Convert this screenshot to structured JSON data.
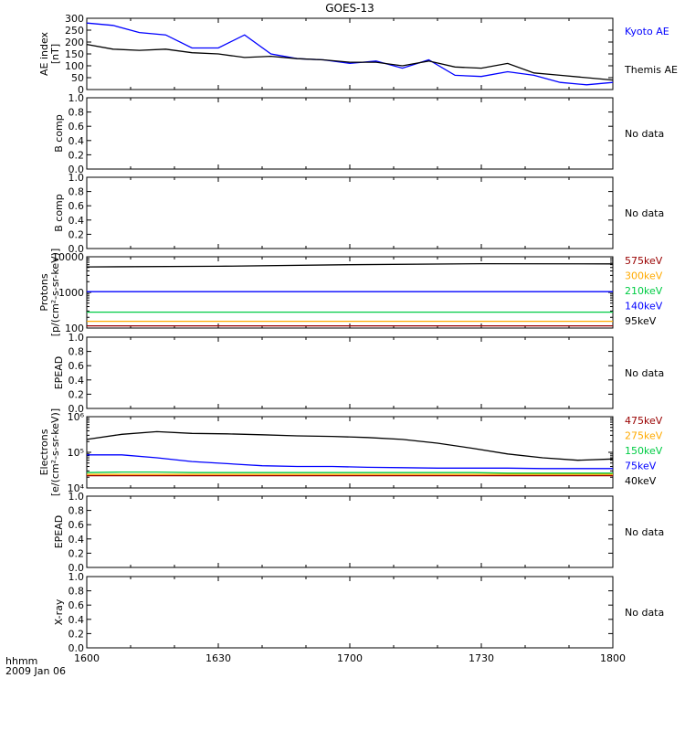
{
  "title": "GOES-13",
  "time_label": "hhmm",
  "date_label": "2009 Jan 06",
  "x_ticks": [
    "1600",
    "1630",
    "1700",
    "1730",
    "1800"
  ],
  "no_data_text": "No data",
  "chart_data": [
    {
      "type": "line",
      "ylabel": [
        "AE index",
        "[nT]"
      ],
      "ylim": [
        0,
        300
      ],
      "yticks": [
        "0",
        "50",
        "100",
        "150",
        "200",
        "250",
        "300"
      ],
      "x_unit": "minutes after 16:00 UT",
      "x": [
        0,
        6,
        12,
        18,
        24,
        30,
        36,
        42,
        48,
        54,
        60,
        66,
        72,
        78,
        84,
        90,
        96,
        102,
        108,
        114,
        120
      ],
      "legend_placement": "right",
      "series": [
        {
          "name": "Kyoto AE",
          "color": "#0000ff",
          "values": [
            280,
            270,
            240,
            230,
            175,
            175,
            230,
            150,
            130,
            125,
            110,
            120,
            90,
            125,
            60,
            55,
            75,
            60,
            30,
            20,
            30
          ]
        },
        {
          "name": "Themis AE",
          "color": "#000000",
          "values": [
            190,
            170,
            165,
            170,
            155,
            150,
            135,
            140,
            130,
            125,
            115,
            115,
            100,
            120,
            95,
            90,
            110,
            70,
            60,
            50,
            40
          ]
        }
      ]
    },
    {
      "type": "line",
      "ylabel": [
        "B comp"
      ],
      "ylim": [
        0,
        1
      ],
      "yticks": [
        "0.0",
        "0.2",
        "0.4",
        "0.6",
        "0.8",
        "1.0"
      ],
      "no_data": true
    },
    {
      "type": "line",
      "ylabel": [
        "B comp"
      ],
      "ylim": [
        0,
        1
      ],
      "yticks": [
        "0.0",
        "0.2",
        "0.4",
        "0.6",
        "0.8",
        "1.0"
      ],
      "no_data": true
    },
    {
      "type": "line",
      "ylabel": [
        "Protons",
        "[p/(cm²-s-sr-keV)]"
      ],
      "log_scale": true,
      "ylim": [
        100,
        10000
      ],
      "yticks": [
        "100",
        "1000",
        "10000"
      ],
      "legend_placement": "right",
      "series": [
        {
          "name": "575keV",
          "color": "#990000",
          "values": [
            115,
            115,
            115,
            115,
            115
          ]
        },
        {
          "name": "300keV",
          "color": "#ffaa00",
          "values": [
            155,
            155,
            155,
            155,
            155
          ]
        },
        {
          "name": "210keV",
          "color": "#00cc44",
          "values": [
            280,
            280,
            280,
            280,
            280
          ]
        },
        {
          "name": "140keV",
          "color": "#0000ff",
          "values": [
            1050,
            1050,
            1050,
            1050,
            1050
          ]
        },
        {
          "name": "95keV",
          "color": "#000000",
          "values": [
            5200,
            5400,
            6000,
            6400,
            6300
          ]
        }
      ]
    },
    {
      "type": "line",
      "ylabel": [
        "EPEAD"
      ],
      "ylim": [
        0,
        1
      ],
      "yticks": [
        "0.0",
        "0.2",
        "0.4",
        "0.6",
        "0.8",
        "1.0"
      ],
      "no_data": true
    },
    {
      "type": "line",
      "ylabel": [
        "Electrons",
        "[e/(cm²-s-sr-keV)]"
      ],
      "log_scale": true,
      "ylim": [
        10000,
        1000000
      ],
      "yticks": [
        "10⁴",
        "10⁵",
        "10⁶"
      ],
      "legend_placement": "right",
      "x_unit": "minutes after 16:00 UT",
      "x": [
        0,
        8,
        16,
        24,
        32,
        40,
        48,
        56,
        64,
        72,
        80,
        88,
        96,
        104,
        112,
        120
      ],
      "series": [
        {
          "name": "475keV",
          "color": "#990000",
          "values": [
            22000,
            22000,
            22000,
            22000,
            22000,
            22000,
            22000,
            22000,
            22000,
            22000,
            22000,
            22000,
            22000,
            22000,
            22000,
            22000
          ]
        },
        {
          "name": "275keV",
          "color": "#ffaa00",
          "values": [
            24000,
            24000,
            24000,
            24000,
            24000,
            24000,
            24000,
            24000,
            24000,
            24000,
            24000,
            24000,
            24000,
            24000,
            24000,
            24000
          ]
        },
        {
          "name": "150keV",
          "color": "#00cc44",
          "values": [
            27000,
            28000,
            28000,
            27000,
            27000,
            27000,
            27000,
            27000,
            27000,
            27000,
            27000,
            27000,
            26000,
            26000,
            26000,
            26000
          ]
        },
        {
          "name": "75keV",
          "color": "#0000ff",
          "values": [
            85000,
            85000,
            70000,
            55000,
            48000,
            42000,
            40000,
            40000,
            38000,
            37000,
            36000,
            36000,
            36000,
            35000,
            35000,
            35000
          ]
        },
        {
          "name": "40keV",
          "color": "#000000",
          "values": [
            230000,
            320000,
            380000,
            340000,
            330000,
            310000,
            290000,
            280000,
            260000,
            230000,
            180000,
            130000,
            90000,
            70000,
            60000,
            65000
          ]
        }
      ]
    },
    {
      "type": "line",
      "ylabel": [
        "EPEAD"
      ],
      "ylim": [
        0,
        1
      ],
      "yticks": [
        "0.0",
        "0.2",
        "0.4",
        "0.6",
        "0.8",
        "1.0"
      ],
      "no_data": true
    },
    {
      "type": "line",
      "ylabel": [
        "X-ray"
      ],
      "ylim": [
        0,
        1
      ],
      "yticks": [
        "0.0",
        "0.2",
        "0.4",
        "0.6",
        "0.8",
        "1.0"
      ],
      "no_data": true
    }
  ]
}
